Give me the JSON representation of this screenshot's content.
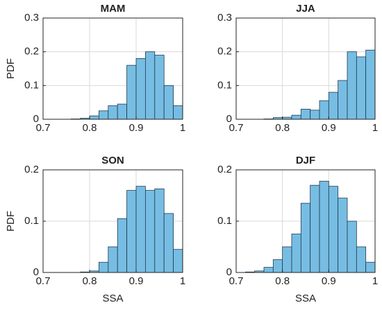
{
  "chart_data": [
    {
      "type": "histogram",
      "title": "MAM",
      "ylabel": "PDF",
      "bins": [
        0.7,
        0.72,
        0.74,
        0.76,
        0.78,
        0.8,
        0.82,
        0.84,
        0.86,
        0.88,
        0.9,
        0.92,
        0.94,
        0.96,
        0.98,
        1.0
      ],
      "values": [
        0,
        0,
        0,
        0.001,
        0.003,
        0.01,
        0.025,
        0.04,
        0.045,
        0.16,
        0.18,
        0.2,
        0.19,
        0.1,
        0.04
      ],
      "color": "#77bde3",
      "xlim": [
        0.7,
        1
      ],
      "xticks": [
        0.7,
        0.8,
        0.9,
        1
      ],
      "ylim": [
        0,
        0.3
      ],
      "yticks": [
        0,
        0.1,
        0.2,
        0.3
      ],
      "grid": true
    },
    {
      "type": "histogram",
      "title": "JJA",
      "bins": [
        0.7,
        0.72,
        0.74,
        0.76,
        0.78,
        0.8,
        0.82,
        0.84,
        0.86,
        0.88,
        0.9,
        0.92,
        0.94,
        0.96,
        0.98,
        1.0
      ],
      "values": [
        0,
        0,
        0,
        0.001,
        0.005,
        0.006,
        0.012,
        0.03,
        0.027,
        0.055,
        0.08,
        0.115,
        0.2,
        0.185,
        0.205
      ],
      "color": "#77bde3",
      "xlim": [
        0.7,
        1
      ],
      "xticks": [
        0.7,
        0.8,
        0.9,
        1
      ],
      "ylim": [
        0,
        0.3
      ],
      "yticks": [
        0,
        0.1,
        0.2,
        0.3
      ],
      "grid": true
    },
    {
      "type": "histogram",
      "title": "SON",
      "ylabel": "PDF",
      "xlabel": "SSA",
      "bins": [
        0.7,
        0.72,
        0.74,
        0.76,
        0.78,
        0.8,
        0.82,
        0.84,
        0.86,
        0.88,
        0.9,
        0.92,
        0.94,
        0.96,
        0.98,
        1.0
      ],
      "values": [
        0,
        0,
        0,
        0,
        0.001,
        0.003,
        0.02,
        0.05,
        0.105,
        0.16,
        0.168,
        0.16,
        0.163,
        0.115,
        0.045
      ],
      "color": "#77bde3",
      "xlim": [
        0.7,
        1
      ],
      "xticks": [
        0.7,
        0.8,
        0.9,
        1
      ],
      "ylim": [
        0,
        0.2
      ],
      "yticks": [
        0,
        0.1,
        0.2
      ],
      "grid": true
    },
    {
      "type": "histogram",
      "title": "DJF",
      "xlabel": "SSA",
      "bins": [
        0.7,
        0.72,
        0.74,
        0.76,
        0.78,
        0.8,
        0.82,
        0.84,
        0.86,
        0.88,
        0.9,
        0.92,
        0.94,
        0.96,
        0.98,
        1.0
      ],
      "values": [
        0,
        0.001,
        0.003,
        0.01,
        0.025,
        0.05,
        0.075,
        0.135,
        0.17,
        0.178,
        0.168,
        0.145,
        0.1,
        0.05,
        0.02
      ],
      "color": "#77bde3",
      "xlim": [
        0.7,
        1
      ],
      "xticks": [
        0.7,
        0.8,
        0.9,
        1
      ],
      "ylim": [
        0,
        0.2
      ],
      "yticks": [
        0,
        0.1,
        0.2
      ],
      "grid": true
    }
  ]
}
